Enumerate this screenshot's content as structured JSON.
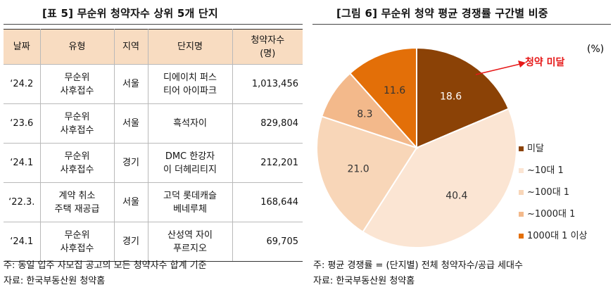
{
  "left": {
    "title": "[표 5] 무순위 청약자수 상위 5개 단지",
    "headers": [
      "날짜",
      "유형",
      "지역",
      "단지명",
      "청약자수\n(명)"
    ],
    "rows": [
      {
        "date": "‘24.2",
        "type": "무순위\n사후접수",
        "region": "서울",
        "complex": "디에이치 퍼스\n티어 아이파크",
        "count": "1,013,456"
      },
      {
        "date": "‘23.6",
        "type": "무순위\n사후접수",
        "region": "서울",
        "complex": "흑석자이",
        "count": "829,804"
      },
      {
        "date": "‘24.1",
        "type": "무순위\n사후접수",
        "region": "경기",
        "complex": "DMC 한강자\n이 더헤리티지",
        "count": "212,201"
      },
      {
        "date": "‘22.3.",
        "type": "계약 취소\n주택 재공급",
        "region": "서울",
        "complex": "고덕 롯데캐슬\n베네루체",
        "count": "168,644"
      },
      {
        "date": "‘24.1",
        "type": "무순위\n사후접수",
        "region": "경기",
        "complex": "산성역 자이\n푸르지오",
        "count": "69,705"
      }
    ],
    "note": "주: 동일 입주 자모집 공고의 모든 청약자수 합계 기준",
    "source": "자료: 한국부동산원 청약홈"
  },
  "right": {
    "title": "[그림 6] 무순위 청약 평균 경쟁률 구간별 비중",
    "unit": "(%)",
    "callout": "청약 미달",
    "note": "주: 평균 경쟁률 = (단지별) 전체 청약자수/공급 세대수",
    "source": "자료: 한국부동산원 청약홈"
  },
  "chart_data": {
    "type": "pie",
    "title": "",
    "unit": "(%)",
    "slices": [
      {
        "label": "미달",
        "value": 18.6,
        "color": "#8b4206"
      },
      {
        "label": "~10대 1",
        "value": 40.4,
        "color": "#fbe5d3"
      },
      {
        "label": "~100대 1",
        "value": 21.0,
        "color": "#f8d6b8"
      },
      {
        "label": "~1000대 1",
        "value": 8.3,
        "color": "#f3b98b"
      },
      {
        "label": "1000대 1 이상",
        "value": 11.6,
        "color": "#e36f08"
      }
    ],
    "start": "12 o'clock, clockwise",
    "legend": "right"
  }
}
